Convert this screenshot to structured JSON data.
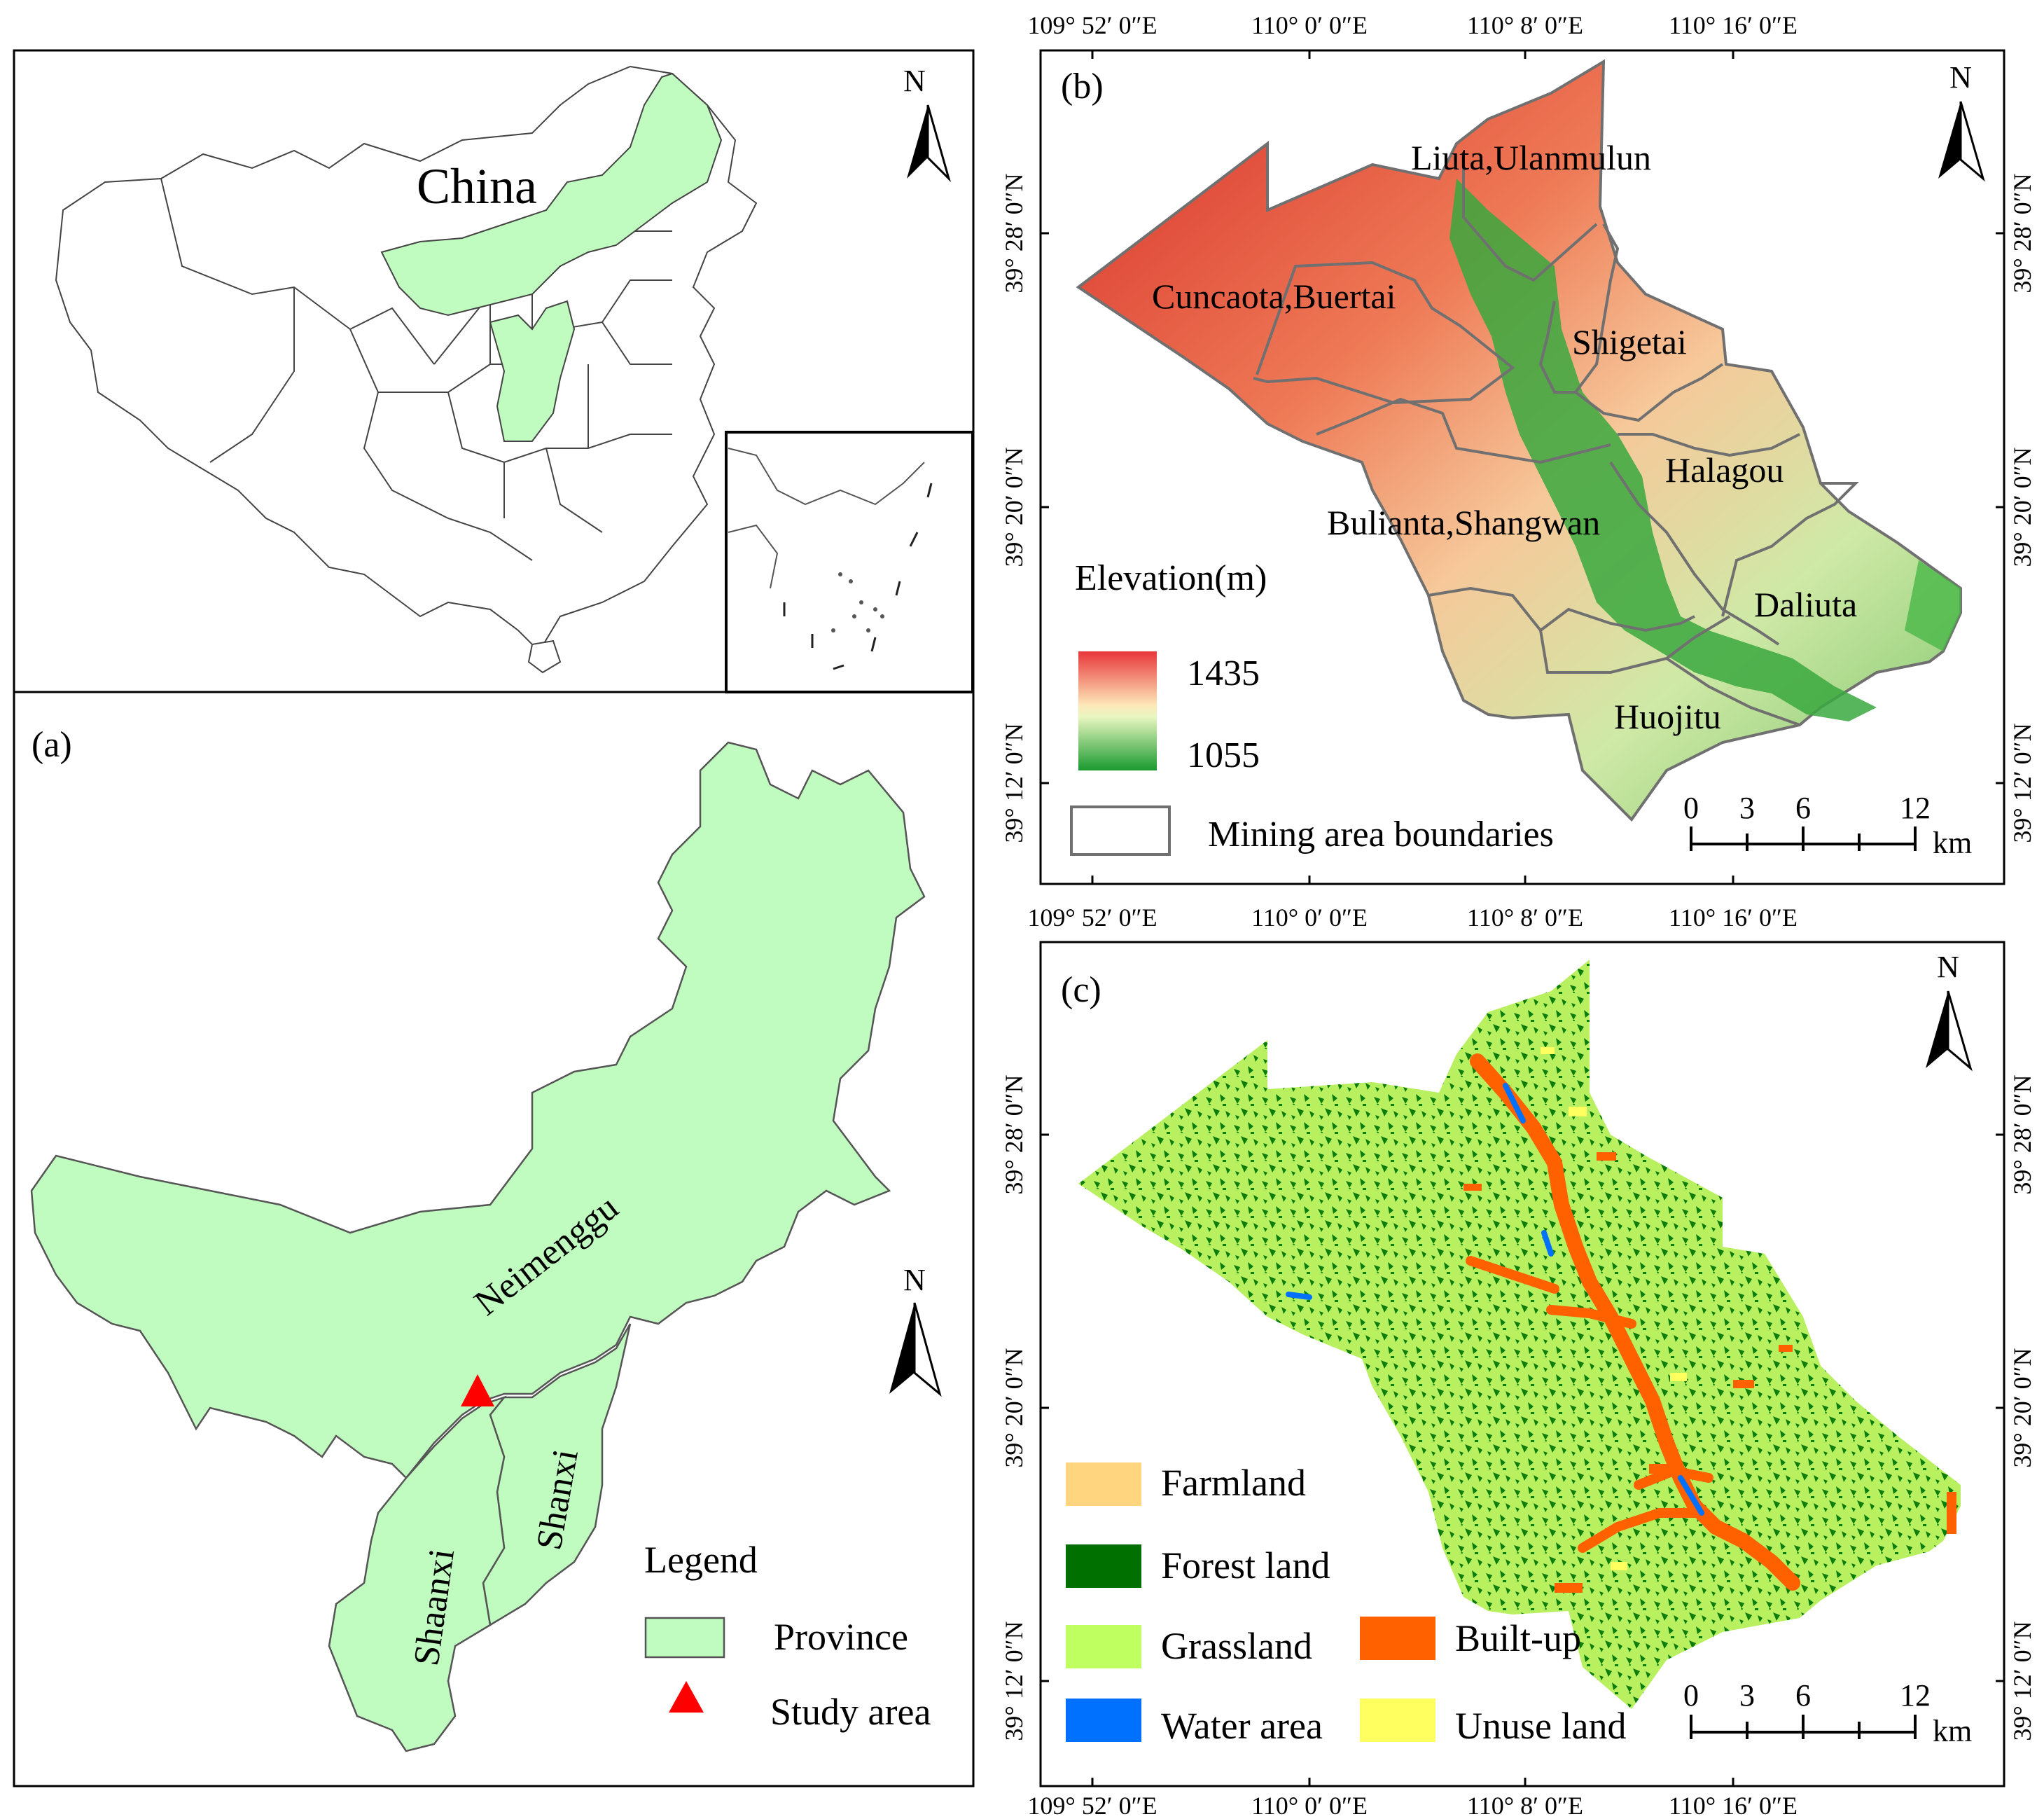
{
  "panel_a": {
    "top_title": "China",
    "panel_label": "(a)",
    "north": "N",
    "north_lower": "N",
    "provinces": {
      "neimenggu": "Neimenggu",
      "shanxi": "Shanxi",
      "shaanxi": "Shaanxi"
    },
    "legend": {
      "title": "Legend",
      "province": "Province",
      "study_area": "Study area"
    },
    "colors": {
      "province": "#c0fbc0",
      "study_area": "#ff0000"
    }
  },
  "panel_b": {
    "panel_label": "(b)",
    "north": "N",
    "mining_areas": [
      "Liuta,Ulanmulun",
      "Cuncaota,Buertai",
      "Shigetai",
      "Halagou",
      "Bulianta,Shangwan",
      "Daliuta",
      "Huojitu"
    ],
    "elevation_title": "Elevation(m)",
    "elevation_max": "1435",
    "elevation_min": "1055",
    "boundary_label": "Mining area boundaries",
    "scale": {
      "ticks": [
        "0",
        "3",
        "6",
        "12"
      ],
      "unit": "km"
    },
    "top_lon": [
      "109° 52′ 0″E",
      "110° 0′ 0″E",
      "110° 8′ 0″E",
      "110° 16′ 0″E"
    ],
    "bottom_lon": [
      "109° 52′ 0″E",
      "110° 0′ 0″E",
      "110° 8′ 0″E",
      "110° 16′ 0″E"
    ],
    "lat": [
      "39° 28′ 0″N",
      "39° 20′ 0″N",
      "39° 12′ 0″N"
    ]
  },
  "panel_c": {
    "panel_label": "(c)",
    "north": "N",
    "legend": [
      {
        "label": "Farmland",
        "color": "#ffd580"
      },
      {
        "label": "Forest land",
        "color": "#007000"
      },
      {
        "label": "Grassland",
        "color": "#c0ff60"
      },
      {
        "label": "Water area",
        "color": "#0070ff"
      },
      {
        "label": "Built-up",
        "color": "#ff6000"
      },
      {
        "label": "Unuse land",
        "color": "#ffff60"
      }
    ],
    "scale": {
      "ticks": [
        "0",
        "3",
        "6",
        "12"
      ],
      "unit": "km"
    },
    "bottom_lon": [
      "109° 52′ 0″E",
      "110° 0′ 0″E",
      "110° 8′ 0″E",
      "110° 16′ 0″E"
    ],
    "lat": [
      "39° 28′ 0″N",
      "39° 20′ 0″N",
      "39° 12′ 0″N"
    ]
  }
}
